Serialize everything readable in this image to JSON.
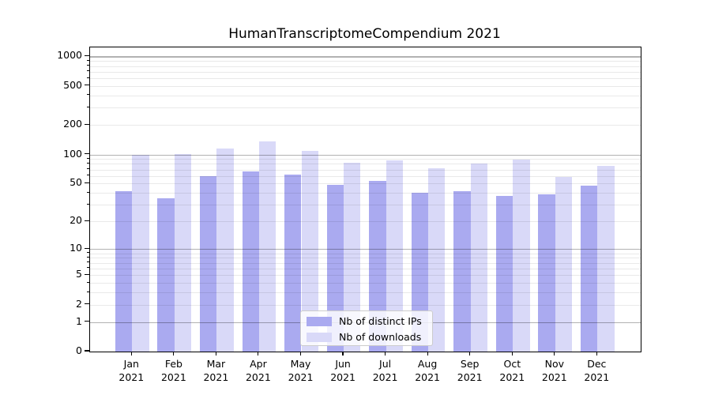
{
  "chart_data": {
    "type": "bar",
    "title": "HumanTranscriptomeCompendium 2021",
    "categories": [
      "Jan",
      "Feb",
      "Mar",
      "Apr",
      "May",
      "Jun",
      "Jul",
      "Aug",
      "Sep",
      "Oct",
      "Nov",
      "Dec"
    ],
    "x_year_label": "2021",
    "series": [
      {
        "name": "Nb of distinct IPs",
        "color": "#aaaaf0",
        "values": [
          42,
          35,
          60,
          67,
          62,
          49,
          53,
          40,
          42,
          37,
          39,
          48
        ]
      },
      {
        "name": "Nb of downloads",
        "color": "#d9d9f8",
        "values": [
          100,
          101,
          115,
          135,
          108,
          82,
          87,
          72,
          80,
          88,
          59,
          76
        ]
      }
    ],
    "y_axis": {
      "scale": "log1p",
      "tick_values": [
        0,
        1,
        2,
        5,
        10,
        20,
        50,
        100,
        200,
        500,
        1000
      ],
      "major_grid_values": [
        1,
        10,
        100,
        1000
      ],
      "minor_grid_values": [
        2,
        3,
        4,
        5,
        6,
        7,
        8,
        9,
        20,
        30,
        40,
        50,
        60,
        70,
        80,
        90,
        200,
        300,
        400,
        500,
        600,
        700,
        800,
        900
      ],
      "ylim_top": 1260
    },
    "legend_position": "lower center",
    "grid": true,
    "colors": {
      "axis": "#000000",
      "major_grid": "#b2b2b2",
      "minor_grid": "#eaeaea"
    }
  }
}
